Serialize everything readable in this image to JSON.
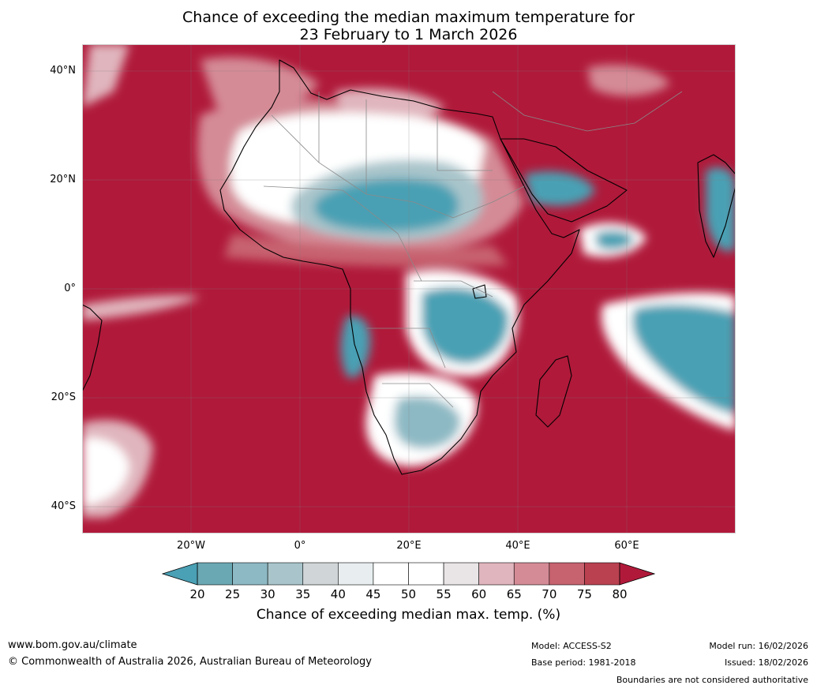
{
  "title": {
    "line1": "Chance of exceeding the median maximum temperature for",
    "line2": "23 February to 1 March 2026"
  },
  "map": {
    "lat_labels": [
      "40°N",
      "20°N",
      "0°",
      "20°S",
      "40°S"
    ],
    "lon_labels": [
      "20°W",
      "0°",
      "20°E",
      "40°E",
      "60°E"
    ]
  },
  "colorbar": {
    "ticks": [
      "20",
      "25",
      "30",
      "35",
      "40",
      "45",
      "50",
      "55",
      "60",
      "65",
      "70",
      "75",
      "80"
    ],
    "colors": [
      "#6aa8b4",
      "#8db9c4",
      "#a9c5cb",
      "#d0d6d8",
      "#e8eef0",
      "#ffffff",
      "#ffffff",
      "#e9e4e6",
      "#e0b5bd",
      "#d48b96",
      "#c7626f",
      "#ba4150"
    ],
    "under_color": "#4aa0b4",
    "over_color": "#b0193a",
    "label": "Chance of exceeding median max. temp. (%)"
  },
  "footer": {
    "website": "www.bom.gov.au/climate",
    "copyright": "© Commonwealth of Australia 2026, Australian Bureau of Meteorology",
    "model": "Model: ACCESS-S2",
    "base_period": "Base period: 1981-2018",
    "model_run": "Model run: 16/02/2026",
    "issued": "Issued: 18/02/2026",
    "disclaimer": "Boundaries are not considered authoritative"
  }
}
